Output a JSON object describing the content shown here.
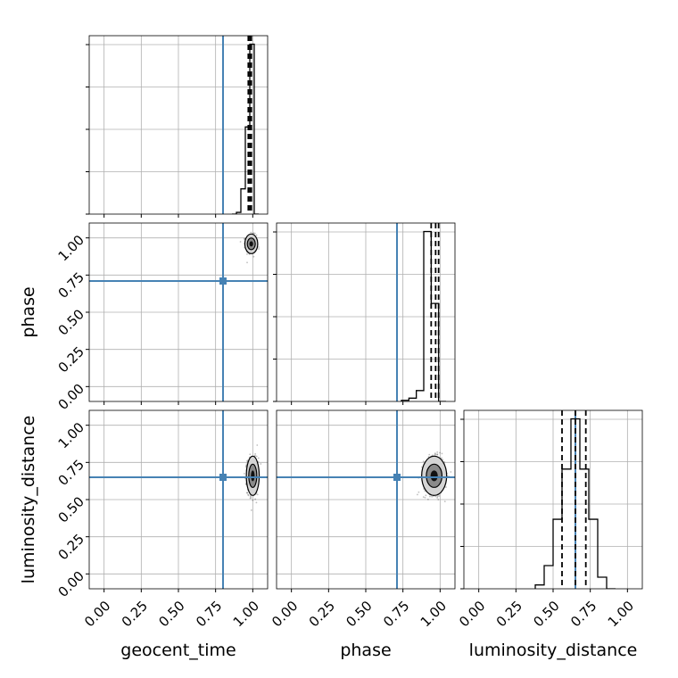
{
  "chart_data": {
    "type": "corner",
    "parameters": [
      "geocent_time",
      "phase",
      "luminosity_distance"
    ],
    "axis_labels": {
      "geocent_time": "geocent_time",
      "phase": "phase",
      "luminosity_distance": "luminosity_distance"
    },
    "tick_labels": [
      "0.00",
      "0.25",
      "0.50",
      "0.75",
      "1.00"
    ],
    "tick_values": [
      0,
      0.25,
      0.5,
      0.75,
      1.0
    ],
    "xlim": [
      -0.1,
      1.1
    ],
    "truths": {
      "geocent_time": 0.8,
      "phase": 0.71,
      "luminosity_distance": 0.65
    },
    "truth_color": "#4682b4",
    "grid": true,
    "histograms": {
      "geocent_time": {
        "bin_edges": [
          0.86,
          0.89,
          0.92,
          0.95,
          0.98,
          1.01,
          1.04
        ],
        "counts": [
          0,
          2,
          29,
          100,
          195,
          0
        ],
        "quantiles": [
          0.97,
          0.98,
          0.99
        ]
      },
      "phase": {
        "bin_edges": [
          0.74,
          0.79,
          0.84,
          0.89,
          0.94,
          0.99,
          1.04
        ],
        "counts": [
          1,
          3,
          10,
          156,
          90,
          0
        ],
        "quantiles": [
          0.94,
          0.97,
          0.99
        ]
      },
      "luminosity_distance": {
        "bin_edges": [
          0.38,
          0.44,
          0.5,
          0.56,
          0.62,
          0.68,
          0.74,
          0.8,
          0.86,
          0.92
        ],
        "counts": [
          1,
          6,
          18,
          31,
          44,
          31,
          18,
          3,
          0
        ],
        "quantiles": [
          0.56,
          0.65,
          0.72
        ]
      }
    },
    "scatter_panels": [
      {
        "x": "geocent_time",
        "y": "phase",
        "center": [
          0.99,
          0.96
        ],
        "spread": [
          0.018,
          0.03
        ],
        "samples": 420
      },
      {
        "x": "geocent_time",
        "y": "luminosity_distance",
        "center": [
          1.0,
          0.66
        ],
        "spread": [
          0.018,
          0.06
        ],
        "samples": 650
      },
      {
        "x": "phase",
        "y": "luminosity_distance",
        "center": [
          0.96,
          0.66
        ],
        "spread": [
          0.035,
          0.06
        ],
        "samples": 650
      }
    ]
  }
}
